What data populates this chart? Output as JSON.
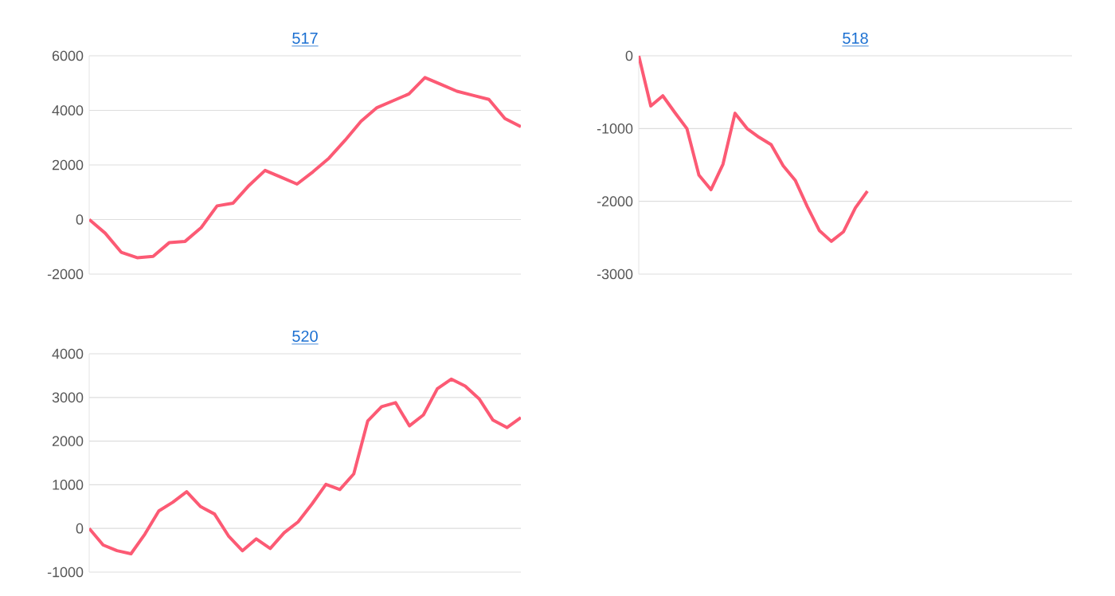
{
  "chart_data": [
    {
      "type": "line",
      "title": "517",
      "categories": [
        null,
        null,
        null,
        null,
        null,
        null,
        null,
        null,
        null,
        null,
        null,
        null,
        null,
        null,
        null,
        null,
        null,
        null,
        null,
        null,
        null,
        null,
        null,
        null,
        null,
        null,
        null,
        null
      ],
      "values": [
        0,
        -500,
        -1200,
        -1400,
        -1350,
        -850,
        -800,
        -300,
        500,
        600,
        1250,
        1800,
        1550,
        1300,
        1750,
        2250,
        2900,
        3600,
        4100,
        4350,
        4600,
        5200,
        4950,
        4700,
        4550,
        4400,
        3700,
        3400
      ],
      "color": "#fc5a74",
      "ylim": [
        -2000,
        6000
      ],
      "yticks": [
        -2000,
        0,
        2000,
        4000,
        6000
      ],
      "grid": "y",
      "tick_labels": "y"
    },
    {
      "type": "line",
      "title": "518",
      "categories": [
        null,
        null,
        null,
        null,
        null,
        null,
        null,
        null,
        null,
        null,
        null,
        null,
        null,
        null,
        null,
        null,
        null,
        null,
        null,
        null,
        null,
        null,
        null,
        null,
        null,
        null,
        null,
        null,
        null,
        null,
        null,
        null,
        null,
        null,
        null,
        null,
        null
      ],
      "values": [
        0,
        -690,
        -550,
        -780,
        -1000,
        -1640,
        -1840,
        -1490,
        -790,
        -1000,
        -1120,
        -1220,
        -1510,
        -1710,
        -2070,
        -2400,
        -2550,
        -2420,
        -2090,
        -1860,
        null,
        null,
        null,
        null,
        null,
        null,
        null,
        null,
        null,
        null,
        null,
        null,
        null,
        null,
        null,
        null,
        null
      ],
      "color": "#fc5a74",
      "ylim": [
        -3000,
        0
      ],
      "yticks": [
        -3000,
        -2000,
        -1000,
        0
      ],
      "grid": "y",
      "tick_labels": "y"
    },
    {
      "type": "line",
      "title": "520",
      "categories": [
        null,
        null,
        null,
        null,
        null,
        null,
        null,
        null,
        null,
        null,
        null,
        null,
        null,
        null,
        null,
        null,
        null,
        null,
        null,
        null,
        null,
        null,
        null,
        null,
        null,
        null,
        null,
        null,
        null,
        null,
        null,
        null
      ],
      "values": [
        0,
        -380,
        -510,
        -580,
        -130,
        400,
        600,
        840,
        500,
        330,
        -170,
        -510,
        -240,
        -460,
        -100,
        150,
        560,
        1010,
        890,
        1250,
        2460,
        2790,
        2880,
        2350,
        2600,
        3200,
        3420,
        3260,
        2970,
        2480,
        2310,
        2540
      ],
      "color": "#fc5a74",
      "ylim": [
        -1000,
        4000
      ],
      "yticks": [
        -1000,
        0,
        1000,
        2000,
        3000,
        4000
      ],
      "grid": "y",
      "tick_labels": "y"
    }
  ]
}
